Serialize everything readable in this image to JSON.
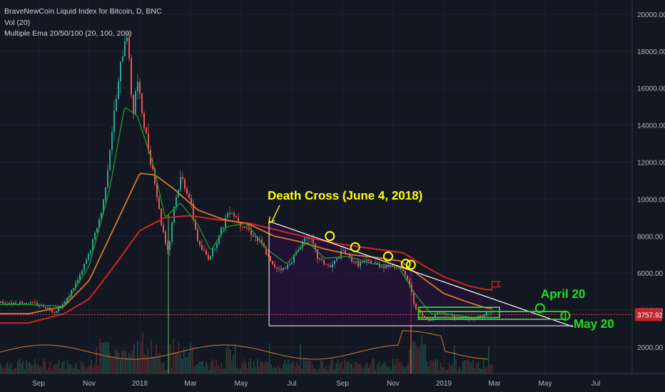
{
  "legend": {
    "symbol": "BraveNewCoin Liquid Index for Bitcoin, D, BNC",
    "volume": "Vol (20)",
    "ema": "Multiple Ema 20/50/100 (20, 100, 200)"
  },
  "colors": {
    "background": "#131722",
    "grid": "#1f2330",
    "axis_text": "#b2b5be",
    "candle_up": "#26a69a",
    "candle_down": "#ef5350",
    "ema20": "#1e9c2e",
    "ema100": "#d8782a",
    "ema200": "#d42323",
    "annotation_yellow": "#ffff00",
    "annotation_green": "#20e020",
    "price_line": "#e05050"
  },
  "chart_data": {
    "type": "candlestick",
    "title": "BraveNewCoin Liquid Index for Bitcoin, D, BNC",
    "y_axis": {
      "ticks": [
        2000,
        4000,
        6000,
        8000,
        10000,
        12000,
        14000,
        16000,
        18000,
        20000
      ],
      "tick_labels": [
        "2000.00",
        "4000.00",
        "6000.00",
        "8000.00",
        "10000.00",
        "12000.00",
        "14000.00",
        "16000.00",
        "18000.00",
        "20000.00"
      ],
      "range": [
        1200,
        20700
      ]
    },
    "x_axis": {
      "labels": [
        "Sep",
        "Nov",
        "2018",
        "Mar",
        "May",
        "Jul",
        "Sep",
        "Nov",
        "2019",
        "Mar",
        "May",
        "Jul"
      ],
      "months_since_sep_2017": [
        0,
        2,
        4,
        6,
        8,
        10,
        12,
        14,
        16,
        18,
        20,
        22
      ]
    },
    "current_price": "3757.92",
    "price_anchors": [
      {
        "t": -0.4,
        "v": 4400
      },
      {
        "t": 0.2,
        "v": 4200
      },
      {
        "t": 0.6,
        "v": 3900
      },
      {
        "t": 1.0,
        "v": 4400
      },
      {
        "t": 1.6,
        "v": 5800
      },
      {
        "t": 2.0,
        "v": 7200
      },
      {
        "t": 2.5,
        "v": 9500
      },
      {
        "t": 2.9,
        "v": 14000
      },
      {
        "t": 3.2,
        "v": 17000
      },
      {
        "t": 3.45,
        "v": 19300
      },
      {
        "t": 3.7,
        "v": 14500
      },
      {
        "t": 3.85,
        "v": 16500
      },
      {
        "t": 4.2,
        "v": 13500
      },
      {
        "t": 4.5,
        "v": 11500
      },
      {
        "t": 4.8,
        "v": 8800
      },
      {
        "t": 5.1,
        "v": 7100
      },
      {
        "t": 5.3,
        "v": 9500
      },
      {
        "t": 5.6,
        "v": 11200
      },
      {
        "t": 5.9,
        "v": 10200
      },
      {
        "t": 6.3,
        "v": 7500
      },
      {
        "t": 6.7,
        "v": 6800
      },
      {
        "t": 7.1,
        "v": 8000
      },
      {
        "t": 7.5,
        "v": 9500
      },
      {
        "t": 7.9,
        "v": 8800
      },
      {
        "t": 8.3,
        "v": 8300
      },
      {
        "t": 8.8,
        "v": 7500
      },
      {
        "t": 9.2,
        "v": 6400
      },
      {
        "t": 9.7,
        "v": 6200
      },
      {
        "t": 10.2,
        "v": 7200
      },
      {
        "t": 10.6,
        "v": 8200
      },
      {
        "t": 11.0,
        "v": 6800
      },
      {
        "t": 11.5,
        "v": 6300
      },
      {
        "t": 12.0,
        "v": 7200
      },
      {
        "t": 12.5,
        "v": 6500
      },
      {
        "t": 13.0,
        "v": 6600
      },
      {
        "t": 13.5,
        "v": 6400
      },
      {
        "t": 14.2,
        "v": 6350
      },
      {
        "t": 14.6,
        "v": 5500
      },
      {
        "t": 14.8,
        "v": 4300
      },
      {
        "t": 15.1,
        "v": 3700
      },
      {
        "t": 15.4,
        "v": 3400
      },
      {
        "t": 15.7,
        "v": 3900
      },
      {
        "t": 16.1,
        "v": 3800
      },
      {
        "t": 16.5,
        "v": 3550
      },
      {
        "t": 17.0,
        "v": 3500
      },
      {
        "t": 17.5,
        "v": 3650
      },
      {
        "t": 17.7,
        "v": 3900
      }
    ],
    "ema20": [
      {
        "t": -0.4,
        "v": 4300
      },
      {
        "t": 1.0,
        "v": 4200
      },
      {
        "t": 2.0,
        "v": 6400
      },
      {
        "t": 2.8,
        "v": 10500
      },
      {
        "t": 3.4,
        "v": 15000
      },
      {
        "t": 3.9,
        "v": 14500
      },
      {
        "t": 4.5,
        "v": 12000
      },
      {
        "t": 5.0,
        "v": 9000
      },
      {
        "t": 5.6,
        "v": 9800
      },
      {
        "t": 6.3,
        "v": 8600
      },
      {
        "t": 6.8,
        "v": 7200
      },
      {
        "t": 7.4,
        "v": 8500
      },
      {
        "t": 8.2,
        "v": 8700
      },
      {
        "t": 9.0,
        "v": 7300
      },
      {
        "t": 9.8,
        "v": 6500
      },
      {
        "t": 10.6,
        "v": 7700
      },
      {
        "t": 11.3,
        "v": 6800
      },
      {
        "t": 12.2,
        "v": 6900
      },
      {
        "t": 13.2,
        "v": 6500
      },
      {
        "t": 14.2,
        "v": 6350
      },
      {
        "t": 14.9,
        "v": 4800
      },
      {
        "t": 15.5,
        "v": 3800
      },
      {
        "t": 16.3,
        "v": 3750
      },
      {
        "t": 17.2,
        "v": 3600
      },
      {
        "t": 17.7,
        "v": 3750
      }
    ],
    "ema100": [
      {
        "t": -0.4,
        "v": 3800
      },
      {
        "t": 1.0,
        "v": 4200
      },
      {
        "t": 2.0,
        "v": 5600
      },
      {
        "t": 3.0,
        "v": 8500
      },
      {
        "t": 4.0,
        "v": 11400
      },
      {
        "t": 4.6,
        "v": 11300
      },
      {
        "t": 5.3,
        "v": 10600
      },
      {
        "t": 6.3,
        "v": 9400
      },
      {
        "t": 7.3,
        "v": 8900
      },
      {
        "t": 8.3,
        "v": 8650
      },
      {
        "t": 9.3,
        "v": 8000
      },
      {
        "t": 10.3,
        "v": 7700
      },
      {
        "t": 11.3,
        "v": 7300
      },
      {
        "t": 12.3,
        "v": 7000
      },
      {
        "t": 13.3,
        "v": 6850
      },
      {
        "t": 14.3,
        "v": 6650
      },
      {
        "t": 15.0,
        "v": 5900
      },
      {
        "t": 16.0,
        "v": 4900
      },
      {
        "t": 16.8,
        "v": 4500
      },
      {
        "t": 17.7,
        "v": 4100
      }
    ],
    "ema200": [
      {
        "t": -0.4,
        "v": 3300
      },
      {
        "t": 1.0,
        "v": 3800
      },
      {
        "t": 2.0,
        "v": 4600
      },
      {
        "t": 3.0,
        "v": 6400
      },
      {
        "t": 4.0,
        "v": 8300
      },
      {
        "t": 5.0,
        "v": 9000
      },
      {
        "t": 6.0,
        "v": 9100
      },
      {
        "t": 7.0,
        "v": 8900
      },
      {
        "t": 8.3,
        "v": 8700
      },
      {
        "t": 9.5,
        "v": 8300
      },
      {
        "t": 10.7,
        "v": 7900
      },
      {
        "t": 12.0,
        "v": 7550
      },
      {
        "t": 13.3,
        "v": 7300
      },
      {
        "t": 14.4,
        "v": 7100
      },
      {
        "t": 15.2,
        "v": 6400
      },
      {
        "t": 16.0,
        "v": 5800
      },
      {
        "t": 17.0,
        "v": 5300
      },
      {
        "t": 17.7,
        "v": 5100
      }
    ],
    "annotations": {
      "death_cross_label": "Death Cross (June 4, 2018)",
      "april_label": "April 20",
      "may_label": "May 20",
      "trendline": [
        {
          "t": 9.1,
          "v": 8800
        },
        {
          "t": 21.1,
          "v": 3100
        }
      ],
      "support_line": {
        "v": 3150,
        "t_start": 9.1,
        "t_end": 21.1
      },
      "death_cross_marker": {
        "t": 9.1
      },
      "yellow_circles": [
        {
          "t": 11.5,
          "v": 8000
        },
        {
          "t": 12.5,
          "v": 7400
        },
        {
          "t": 13.8,
          "v": 6900
        },
        {
          "t": 14.5,
          "v": 6500
        },
        {
          "t": 14.7,
          "v": 6450
        }
      ],
      "green_circles": [
        {
          "t": 19.8,
          "v": 4100
        },
        {
          "t": 20.8,
          "v": 3700
        }
      ],
      "green_box": {
        "t_start": 15.0,
        "t_end": 18.2,
        "v_low": 3600,
        "v_high": 4150
      },
      "green_band": {
        "t_start": 15.0,
        "t_end": 20.8,
        "v_low": 3500,
        "v_high": 3920
      },
      "flag": {
        "t": 17.9,
        "v": 5400
      }
    }
  }
}
